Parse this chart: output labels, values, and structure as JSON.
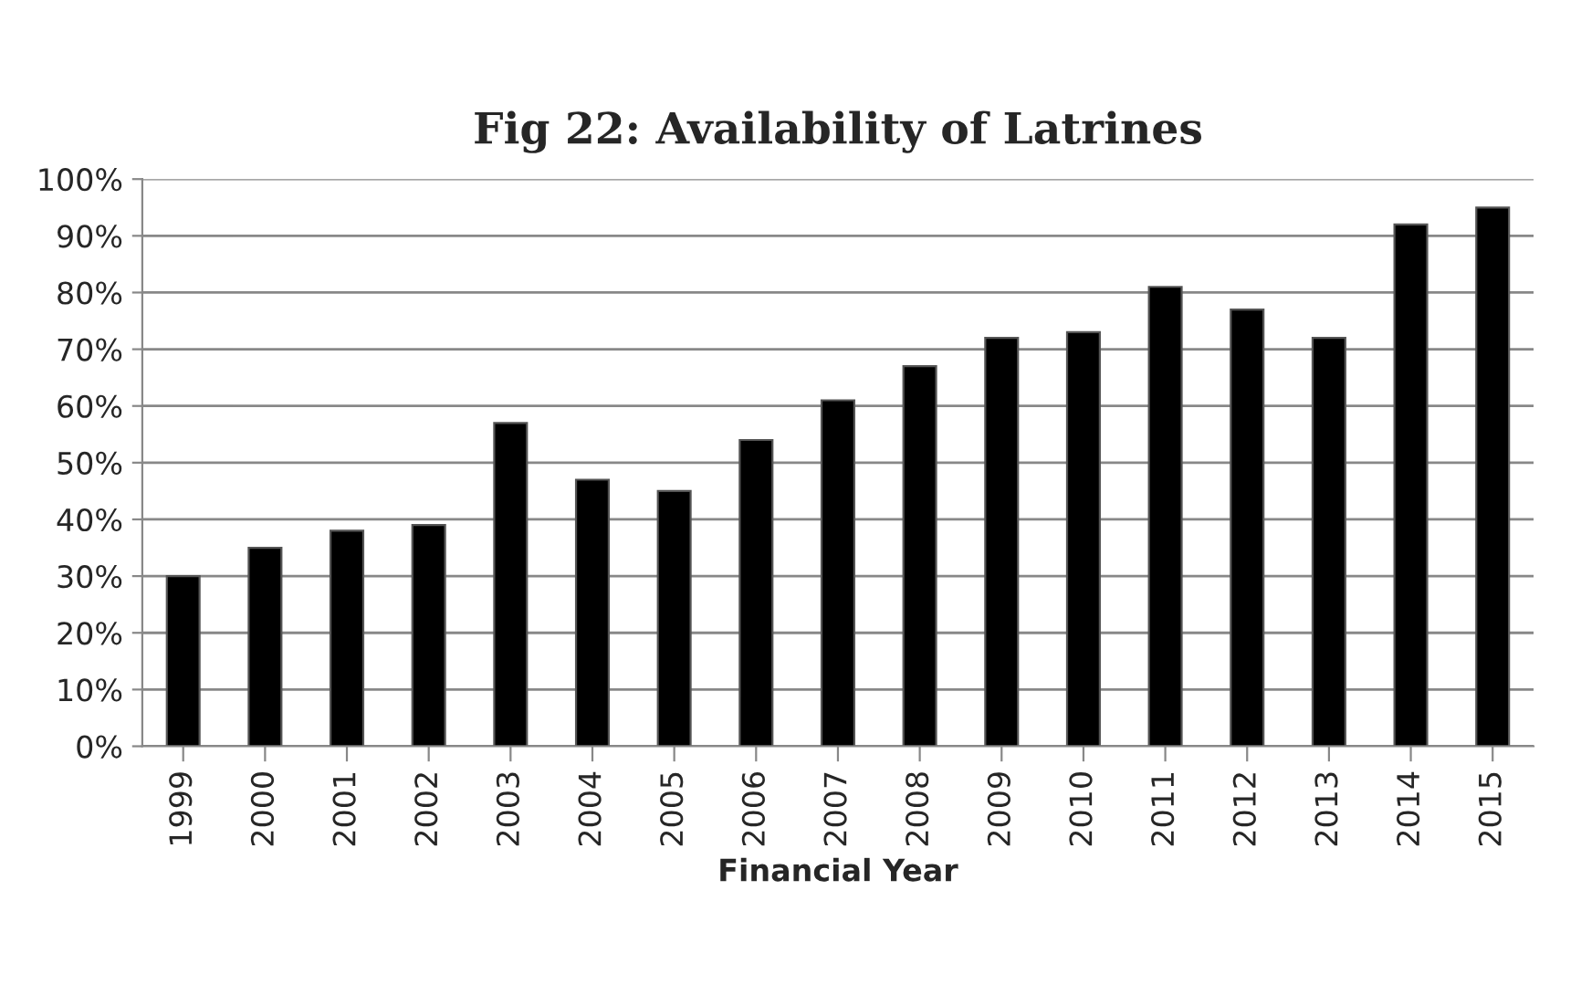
{
  "chart_data": {
    "type": "bar",
    "title": "Fig 22: Availability of Latrines",
    "xlabel": "Financial Year",
    "categories": [
      "1999",
      "2000",
      "2001",
      "2002",
      "2003",
      "2004",
      "2005",
      "2006",
      "2007",
      "2008",
      "2009",
      "2010",
      "2011",
      "2012",
      "2013",
      "2014",
      "2015"
    ],
    "values": [
      30,
      35,
      38,
      39,
      57,
      47,
      45,
      54,
      61,
      67,
      72,
      73,
      81,
      77,
      72,
      92,
      95
    ],
    "color": "#000000",
    "ylim": [
      0,
      100
    ],
    "yticks": [
      {
        "value": 0,
        "label": "0%"
      },
      {
        "value": 10,
        "label": "10%"
      },
      {
        "value": 20,
        "label": "20%"
      },
      {
        "value": 30,
        "label": "30%"
      },
      {
        "value": 40,
        "label": "40%"
      },
      {
        "value": 50,
        "label": "50%"
      },
      {
        "value": 60,
        "label": "60%"
      },
      {
        "value": 70,
        "label": "70%"
      },
      {
        "value": 80,
        "label": "80%"
      },
      {
        "value": 90,
        "label": "90%"
      },
      {
        "value": 100,
        "label": "100%"
      }
    ],
    "grid": "y",
    "legend": false
  }
}
